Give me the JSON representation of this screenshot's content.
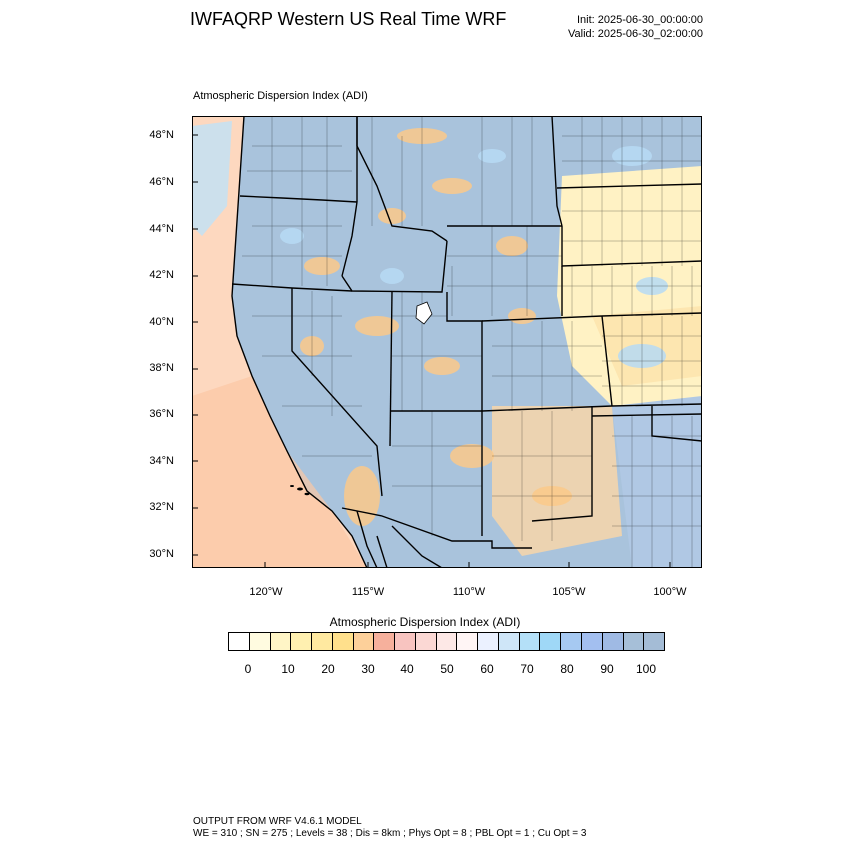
{
  "header": {
    "title": "IWFAQRP Western US Real Time WRF",
    "init": "Init: 2025-06-30_00:00:00",
    "valid": "Valid: 2025-06-30_02:00:00"
  },
  "map": {
    "field_label": "Atmospheric Dispersion Index   (ADI)",
    "lat_labels": [
      "48°N",
      "46°N",
      "44°N",
      "42°N",
      "40°N",
      "38°N",
      "36°N",
      "34°N",
      "32°N",
      "30°N"
    ],
    "lon_labels": [
      "120°W",
      "115°W",
      "110°W",
      "105°W",
      "100°W"
    ]
  },
  "colorbar": {
    "title": "Atmospheric Dispersion Index  (ADI)",
    "colors": [
      "#ffffff",
      "#fffbe0",
      "#fff5c6",
      "#fff0b0",
      "#ffe9a0",
      "#ffe08c",
      "#fdd09a",
      "#f6b09c",
      "#f8c4c0",
      "#fbd8d4",
      "#fde8e6",
      "#fff5f5",
      "#ebf1ff",
      "#cfe6f8",
      "#b4e0f8",
      "#9fd8f7",
      "#a6c9f2",
      "#a3bff0",
      "#9fbae4",
      "#a6bfd8",
      "#a4bcd6"
    ],
    "tick_labels": [
      "0",
      "10",
      "20",
      "30",
      "40",
      "50",
      "60",
      "70",
      "80",
      "90",
      "100"
    ]
  },
  "footer": {
    "line1": "OUTPUT FROM WRF V4.6.1 MODEL",
    "line2": "WE = 310 ; SN = 275 ; Levels = 38 ; Dis = 8km ; Phys Opt = 8 ; PBL Opt = 1 ; Cu Opt = 3"
  },
  "palette": {
    "ocean_warm": "#fbd5b8",
    "land_blue": "#a9c3dc",
    "plains_yellow": "#fff3c2",
    "orange": "#fcc98a",
    "light_blue": "#b7dbf5"
  }
}
